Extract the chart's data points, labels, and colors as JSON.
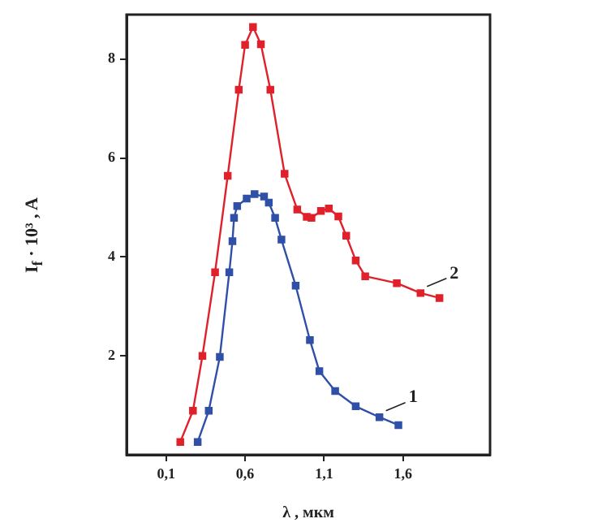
{
  "chart_data": {
    "type": "line",
    "xlabel": "λ , мкм",
    "ylabel": "I$_{f}$ · 10³ , A",
    "xlim": [
      -0.15,
      2.15
    ],
    "ylim": [
      0,
      8.9
    ],
    "xticks": [
      {
        "value": 0.1,
        "label": "0,1"
      },
      {
        "value": 0.6,
        "label": "0,6"
      },
      {
        "value": 1.1,
        "label": "1,1"
      },
      {
        "value": 1.6,
        "label": "1,6"
      }
    ],
    "yticks": [
      2,
      4,
      6,
      8
    ],
    "grid": false,
    "legend": false,
    "marker": "square",
    "line_style": "solid",
    "series": [
      {
        "name": "2",
        "color": "#e0202a",
        "x": [
          0.19,
          0.27,
          0.33,
          0.41,
          0.49,
          0.56,
          0.6,
          0.65,
          0.7,
          0.76,
          0.85,
          0.93,
          0.99,
          1.02,
          1.08,
          1.13,
          1.19,
          1.24,
          1.3,
          1.36,
          1.56,
          1.71,
          1.83
        ],
        "values": [
          0.26,
          0.89,
          2.0,
          3.69,
          5.64,
          7.38,
          8.29,
          8.65,
          8.3,
          7.38,
          5.68,
          4.96,
          4.81,
          4.79,
          4.93,
          4.98,
          4.82,
          4.43,
          3.93,
          3.61,
          3.47,
          3.27,
          3.17
        ]
      },
      {
        "name": "1",
        "color": "#3050a8",
        "x": [
          0.3,
          0.37,
          0.44,
          0.5,
          0.52,
          0.53,
          0.55,
          0.61,
          0.66,
          0.72,
          0.75,
          0.79,
          0.83,
          0.92,
          1.01,
          1.07,
          1.17,
          1.3,
          1.45,
          1.57
        ],
        "values": [
          0.26,
          0.89,
          1.98,
          3.69,
          4.32,
          4.79,
          5.03,
          5.18,
          5.27,
          5.22,
          5.1,
          4.79,
          4.35,
          3.42,
          2.32,
          1.69,
          1.29,
          0.98,
          0.76,
          0.6
        ]
      }
    ]
  }
}
